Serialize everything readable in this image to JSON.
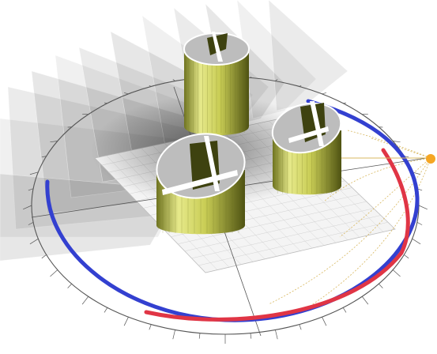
{
  "scene": {
    "grid_label": "",
    "colors": {
      "background": "#ffffff",
      "shadow": "#3a3a3a",
      "tower_body": "#cfd36a",
      "tower_dark": "#3e4210",
      "tower_top": "#bdbdbd",
      "grid_line": "#cfcfcf",
      "compass_ring": "#555555",
      "summer_path": "#e03545",
      "winter_path": "#3340d0",
      "sun_path": "#d8b860",
      "sun_marker": "#f5a623"
    },
    "icons": {
      "sun": "sun-icon",
      "towers": [
        "tower-back",
        "tower-right",
        "tower-front"
      ]
    }
  }
}
